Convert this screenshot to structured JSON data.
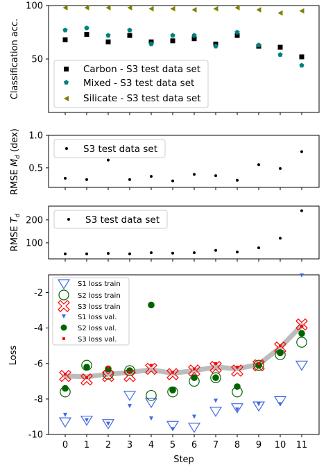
{
  "chart_data": [
    {
      "type": "scatter",
      "ylabel": "Classification acc.",
      "ylim": [
        0,
        100
      ],
      "yticks": [
        "50",
        "100"
      ],
      "x": [
        0,
        1,
        2,
        3,
        4,
        5,
        6,
        7,
        8,
        9,
        10,
        11
      ],
      "legend_position": "lower-left",
      "series": [
        {
          "name": "Carbon - S3 test data set",
          "color": "#000000",
          "marker": "square",
          "values": [
            68,
            73,
            66,
            72,
            66,
            67,
            69,
            64,
            72,
            62,
            61,
            52
          ]
        },
        {
          "name": "Mixed - S3 test data set",
          "color": "#008080",
          "marker": "pentagon",
          "values": [
            77,
            79,
            72,
            77,
            64,
            72,
            72,
            62,
            75,
            63,
            54,
            44
          ]
        },
        {
          "name": "Silicate - S3 test data set",
          "color": "#808000",
          "marker": "triangle-left",
          "values": [
            98,
            98,
            98,
            98,
            97,
            97,
            96,
            97,
            98,
            96,
            93,
            95
          ]
        }
      ]
    },
    {
      "type": "scatter",
      "ylabel": "RMSE M_d (dex)",
      "ylabel_main": "RMSE ",
      "ylabel_sym": "M",
      "ylabel_sub": "d",
      "ylabel_tail": " (dex)",
      "ylim": [
        0.2,
        1.0
      ],
      "yticks": [
        "0.5",
        "1.0"
      ],
      "x": [
        0,
        1,
        2,
        3,
        4,
        5,
        6,
        7,
        8,
        9,
        10,
        11
      ],
      "legend_position": "top-left",
      "series": [
        {
          "name": "S3 test data set",
          "color": "#000000",
          "marker": "dot",
          "values": [
            0.34,
            0.32,
            0.62,
            0.32,
            0.37,
            0.3,
            0.4,
            0.38,
            0.31,
            0.55,
            0.49,
            0.75
          ]
        }
      ]
    },
    {
      "type": "scatter",
      "ylabel": "RMSE T_d",
      "ylabel_main": "RMSE ",
      "ylabel_sym": "T",
      "ylabel_sub": "d",
      "ylim": [
        30,
        260
      ],
      "yticks": [
        "100",
        "200"
      ],
      "x": [
        0,
        1,
        2,
        3,
        4,
        5,
        6,
        7,
        8,
        9,
        10,
        11
      ],
      "legend_position": "top-left",
      "series": [
        {
          "name": "S3 test data set",
          "color": "#000000",
          "marker": "dot",
          "values": [
            52,
            52,
            54,
            52,
            57,
            55,
            57,
            67,
            60,
            78,
            120,
            240
          ]
        }
      ]
    },
    {
      "type": "scatter",
      "ylabel": "Loss",
      "xlabel": "Step",
      "ylim": [
        -10,
        -1
      ],
      "yticks": [
        "-10",
        "-8",
        "-6",
        "-4",
        "-2"
      ],
      "xticks": [
        "0",
        "1",
        "2",
        "3",
        "4",
        "5",
        "6",
        "7",
        "8",
        "9",
        "10",
        "11"
      ],
      "x": [
        0,
        1,
        2,
        3,
        4,
        5,
        6,
        7,
        8,
        9,
        10,
        11
      ],
      "legend_position": "top-left",
      "series": [
        {
          "name": "S1 loss train",
          "color": "#4169e1",
          "marker": "triangle-down-open",
          "values": [
            -9.3,
            -9.2,
            -9.4,
            -7.8,
            -8.2,
            -9.5,
            -9.6,
            -8.7,
            -8.5,
            -8.4,
            -8.1,
            -6.1
          ]
        },
        {
          "name": "S2 loss train",
          "color": "#006400",
          "marker": "circle-open",
          "values": [
            -7.6,
            -6.1,
            -6.6,
            -6.4,
            -7.8,
            -7.6,
            -7.0,
            -6.8,
            -7.6,
            -6.1,
            -5.5,
            -4.8
          ]
        },
        {
          "name": "S3 loss train",
          "color": "#ff0000",
          "marker": "x-open",
          "values": [
            -6.7,
            -6.9,
            -6.7,
            -6.7,
            -6.3,
            -6.6,
            -6.4,
            -6.2,
            -6.4,
            -6.1,
            -5.1,
            -3.8
          ]
        },
        {
          "name": "S1 loss val.",
          "color": "#4169e1",
          "marker": "triangle-down",
          "values": [
            -8.9,
            -9.2,
            -9.4,
            -8.4,
            -9.1,
            -9.7,
            -9.0,
            -8.1,
            -8.6,
            -8.3,
            -8.3,
            -1.0
          ]
        },
        {
          "name": "S2 loss val.",
          "color": "#006400",
          "marker": "circle",
          "values": [
            -7.4,
            -6.2,
            -6.3,
            -6.4,
            -2.7,
            -7.5,
            -6.8,
            -6.8,
            -7.3,
            -6.1,
            -5.4,
            -4.3
          ]
        },
        {
          "name": "S3 loss val.",
          "color": "#ff0000",
          "marker": "square-small",
          "values": [
            -6.6,
            -6.8,
            -6.2,
            -6.5,
            -6.1,
            -6.5,
            -6.3,
            -6.0,
            -6.2,
            -6.0,
            -5.0,
            -3.9
          ]
        }
      ],
      "band": {
        "color": "#b0b0b0",
        "values": [
          -6.7,
          -6.75,
          -6.6,
          -6.5,
          -6.35,
          -6.55,
          -6.4,
          -6.2,
          -6.3,
          -6.05,
          -5.1,
          -3.85
        ]
      }
    }
  ]
}
